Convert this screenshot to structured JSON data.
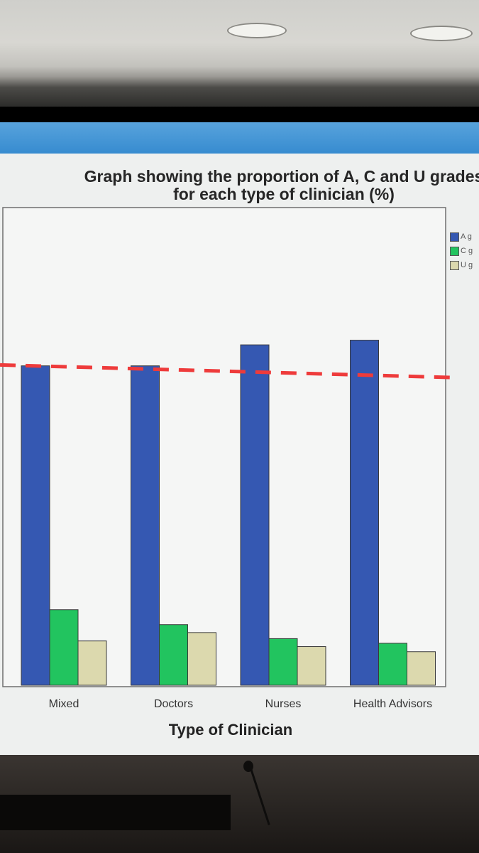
{
  "chart_data": {
    "type": "bar",
    "title": "Graph showing the proportion of A, C and U grades\nfor each type of clinician (%)",
    "xlabel": "Type of Clinician",
    "ylabel": "",
    "categories": [
      "Mixed",
      "Doctors",
      "Nurses",
      "Health Advisors"
    ],
    "series": [
      {
        "name": "A g",
        "color": "#3558b2",
        "values": [
          68.5,
          68.5,
          73.0,
          74.0
        ]
      },
      {
        "name": "C g",
        "color": "#22c45f",
        "values": [
          16.2,
          13.0,
          10.0,
          9.0
        ]
      },
      {
        "name": "U g",
        "color": "#dcd9ae",
        "values": [
          9.5,
          11.3,
          8.3,
          7.2
        ]
      }
    ],
    "ylim": [
      0,
      100
    ],
    "reference_line": {
      "style": "dashed",
      "color": "#ee3b3b",
      "values_start_end": [
        68.7,
        66.0
      ]
    },
    "grid": false,
    "legend_position": "top-right"
  }
}
